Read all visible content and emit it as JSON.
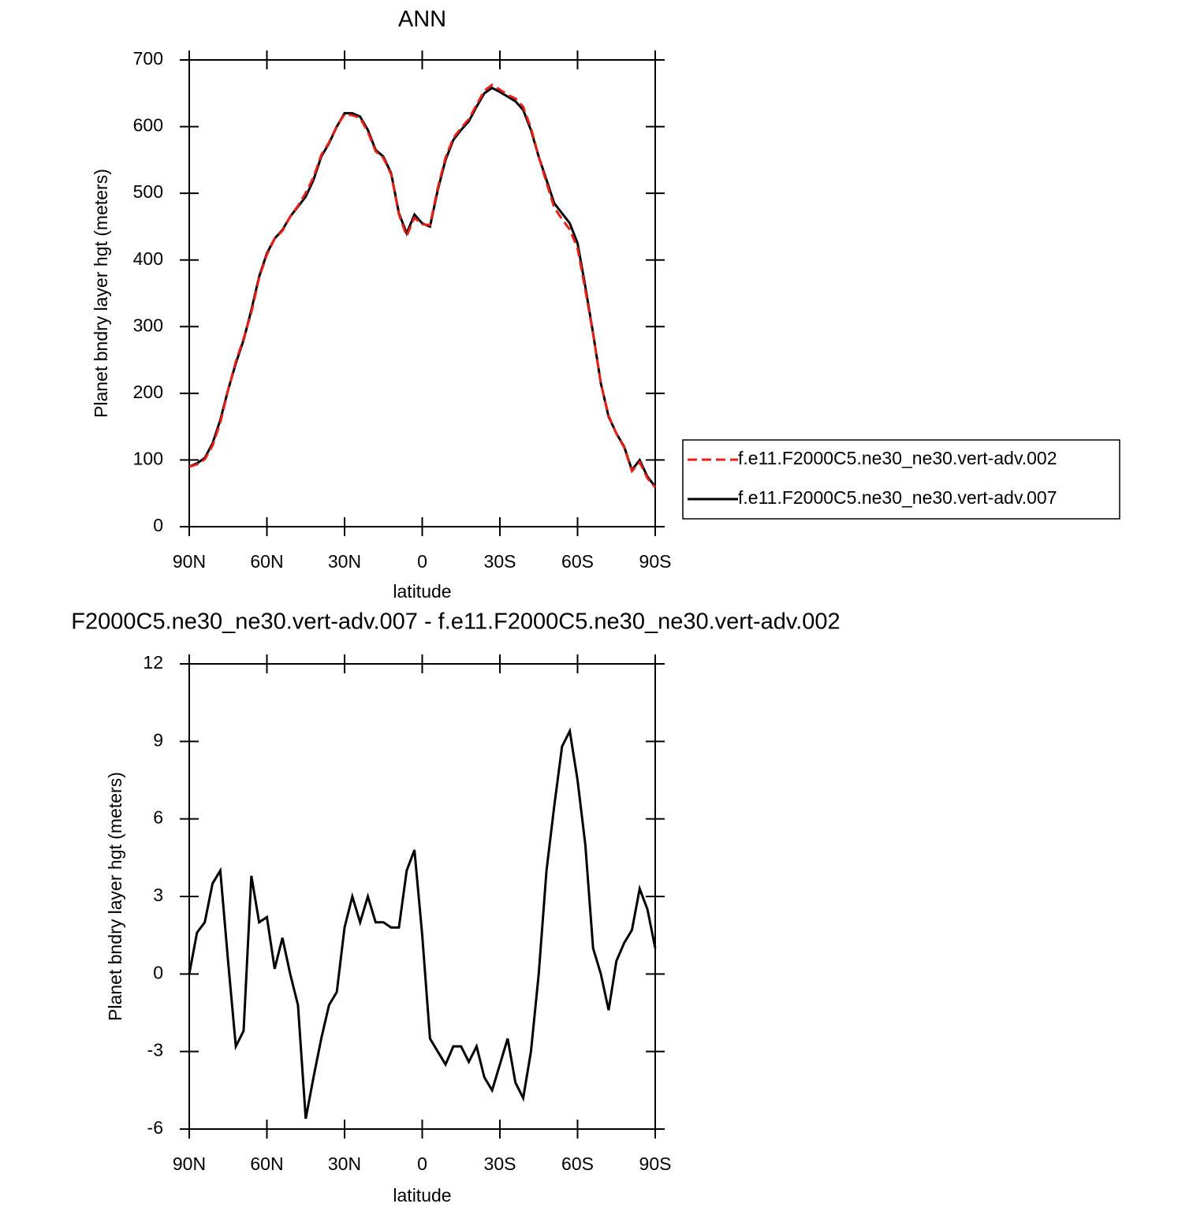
{
  "chart_data": [
    {
      "type": "line",
      "title": "ANN",
      "xlabel": "latitude",
      "ylabel": "Planet bndry layer hgt (meters)",
      "x": [
        90,
        87,
        84,
        81,
        78,
        75,
        72,
        69,
        66,
        63,
        60,
        57,
        54,
        51,
        48,
        45,
        42,
        39,
        36,
        33,
        30,
        27,
        24,
        21,
        18,
        15,
        12,
        9,
        6,
        3,
        0,
        -3,
        -6,
        -9,
        -12,
        -15,
        -18,
        -21,
        -24,
        -27,
        -30,
        -33,
        -36,
        -39,
        -42,
        -45,
        -48,
        -51,
        -54,
        -57,
        -60,
        -63,
        -66,
        -69,
        -72,
        -75,
        -78,
        -81,
        -84,
        -87,
        -90
      ],
      "xlim": [
        90,
        -90
      ],
      "xticks": [
        {
          "value": 90,
          "label": "90N"
        },
        {
          "value": 60,
          "label": "60N"
        },
        {
          "value": 30,
          "label": "30N"
        },
        0,
        {
          "value": -30,
          "label": "30S"
        },
        {
          "value": -60,
          "label": "60S"
        },
        {
          "value": -90,
          "label": "90S"
        }
      ],
      "ylim": [
        0,
        700
      ],
      "yticks": [
        0,
        100,
        200,
        300,
        400,
        500,
        600,
        700
      ],
      "legend": "right",
      "series": [
        {
          "name": "f.e11.F2000C5.ne30_ne30.vert-adv.002",
          "color": "#e8201a",
          "line_style": "dashed",
          "values": [
            90,
            93.4,
            101,
            121.5,
            156,
            204.5,
            247.8,
            282.2,
            321.2,
            373,
            407.8,
            431.8,
            443.6,
            465,
            481.2,
            500.6,
            524,
            557.5,
            576.2,
            600.7,
            618.2,
            617,
            613,
            592,
            563,
            553,
            528.2,
            468.2,
            436,
            463.2,
            453.5,
            452.5,
            508,
            553.5,
            582.8,
            597.8,
            611.4,
            632.8,
            654,
            662.5,
            655.5,
            647.5,
            642.2,
            629.8,
            598,
            555,
            516,
            478.5,
            461.2,
            445.6,
            417.5,
            355,
            289,
            215,
            166.4,
            139.5,
            118.8,
            83.3,
            96.7,
            72.5,
            59
          ]
        },
        {
          "name": "f.e11.F2000C5.ne30_ne30.vert-adv.007",
          "color": "#000000",
          "line_style": "solid",
          "values": [
            90,
            95,
            103,
            125,
            160,
            205,
            245,
            280,
            325,
            375,
            410,
            432,
            445,
            465,
            480,
            495,
            520,
            555,
            575,
            600,
            620,
            620,
            615,
            595,
            565,
            555,
            530,
            470,
            440,
            468,
            455,
            450,
            505,
            550,
            580,
            595,
            608,
            630,
            650,
            658,
            652,
            645,
            638,
            625,
            595,
            555,
            520,
            485,
            470,
            455,
            425,
            360,
            290,
            215,
            165,
            140,
            120,
            85,
            100,
            75,
            60
          ]
        }
      ]
    },
    {
      "type": "line",
      "title": "F2000C5.ne30_ne30.vert-adv.007 - f.e11.F2000C5.ne30_ne30.vert-adv.002",
      "xlabel": "latitude",
      "ylabel": "Planet bndry layer hgt (meters)",
      "x": [
        90,
        87,
        84,
        81,
        78,
        75,
        72,
        69,
        66,
        63,
        60,
        57,
        54,
        51,
        48,
        45,
        42,
        39,
        36,
        33,
        30,
        27,
        24,
        21,
        18,
        15,
        12,
        9,
        6,
        3,
        0,
        -3,
        -6,
        -9,
        -12,
        -15,
        -18,
        -21,
        -24,
        -27,
        -30,
        -33,
        -36,
        -39,
        -42,
        -45,
        -48,
        -51,
        -54,
        -57,
        -60,
        -63,
        -66,
        -69,
        -72,
        -75,
        -78,
        -81,
        -84,
        -87,
        -90
      ],
      "xlim": [
        90,
        -90
      ],
      "xticks": [
        {
          "value": 90,
          "label": "90N"
        },
        {
          "value": 60,
          "label": "60N"
        },
        {
          "value": 30,
          "label": "30N"
        },
        0,
        {
          "value": -30,
          "label": "30S"
        },
        {
          "value": -60,
          "label": "60S"
        },
        {
          "value": -90,
          "label": "90S"
        }
      ],
      "ylim": [
        -6,
        12
      ],
      "yticks": [
        -6,
        -3,
        0,
        3,
        6,
        9,
        12
      ],
      "series": [
        {
          "color": "#000000",
          "line_style": "solid",
          "values": [
            0,
            1.6,
            2.0,
            3.5,
            4.0,
            0.5,
            -2.8,
            -2.2,
            3.8,
            2.0,
            2.2,
            0.2,
            1.4,
            0,
            -1.2,
            -5.6,
            -4.0,
            -2.5,
            -1.2,
            -0.7,
            1.8,
            3.0,
            2.0,
            3.0,
            2.0,
            2.0,
            1.8,
            1.8,
            4.0,
            4.8,
            1.5,
            -2.5,
            -3.0,
            -3.5,
            -2.8,
            -2.8,
            -3.4,
            -2.8,
            -4.0,
            -4.5,
            -3.5,
            -2.5,
            -4.2,
            -4.8,
            -3.0,
            0,
            4.0,
            6.5,
            8.8,
            9.4,
            7.5,
            5.0,
            1.0,
            0,
            -1.4,
            0.5,
            1.2,
            1.7,
            3.3,
            2.5,
            1.0
          ]
        }
      ]
    }
  ]
}
